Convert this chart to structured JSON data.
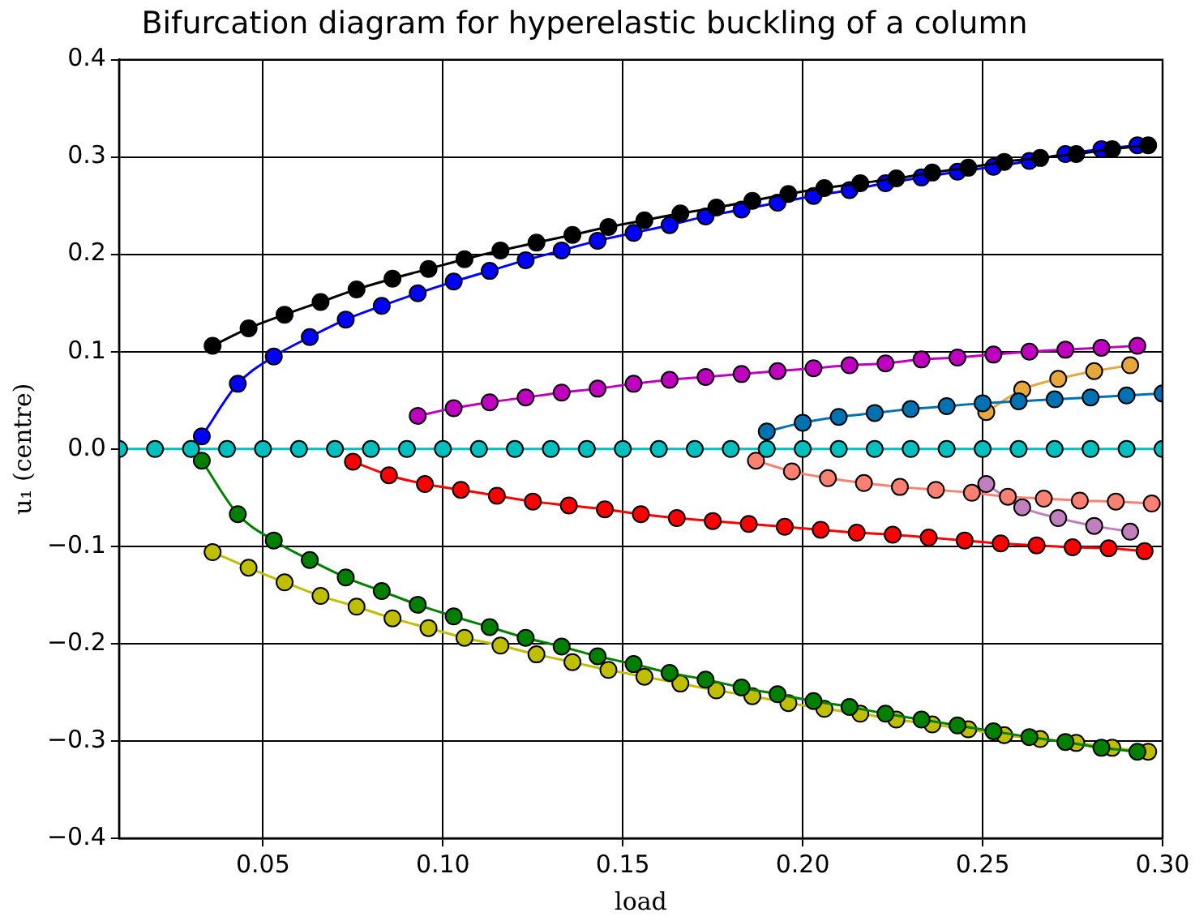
{
  "chart_data": {
    "type": "line",
    "title": "Bifurcation diagram for hyperelastic buckling of a column",
    "xlabel": "load",
    "ylabel": "u₁ (centre)",
    "xlim": [
      0.01,
      0.3
    ],
    "ylim": [
      -0.4,
      0.4
    ],
    "xticks": [
      0.05,
      {
        "value": 0.1,
        "label": "0.10"
      },
      0.15,
      {
        "value": 0.2,
        "label": "0.20"
      },
      0.25,
      {
        "value": 0.3,
        "label": "0.30"
      }
    ],
    "yticks": [
      {
        "value": -0.4,
        "label": "−0.4"
      },
      {
        "value": -0.3,
        "label": "−0.3"
      },
      {
        "value": -0.2,
        "label": "−0.2"
      },
      {
        "value": -0.1,
        "label": "−0.1"
      },
      {
        "value": 0,
        "label": "0.0"
      },
      0.1,
      0.2,
      0.3,
      0.4
    ],
    "grid": true,
    "legend": false,
    "marker": "circle",
    "line_style": "solid",
    "series": [
      {
        "color": "#00bfbf",
        "x": [
          0.01,
          0.02,
          0.03,
          0.04,
          0.05,
          0.06,
          0.07,
          0.08,
          0.09,
          0.1,
          0.11,
          0.12,
          0.13,
          0.14,
          0.15,
          0.16,
          0.17,
          0.18,
          0.19,
          0.2,
          0.21,
          0.22,
          0.23,
          0.24,
          0.25,
          0.26,
          0.27,
          0.28,
          0.29,
          0.3
        ],
        "values": [
          0,
          0,
          0,
          0,
          0,
          0,
          0,
          0,
          0,
          0,
          0,
          0,
          0,
          0,
          0,
          0,
          0,
          0,
          0,
          0,
          0,
          0,
          0,
          0,
          0,
          0,
          0,
          0,
          0,
          0
        ]
      },
      {
        "color": "#000000",
        "x": [
          0.036,
          0.046,
          0.056,
          0.066,
          0.076,
          0.086,
          0.096,
          0.106,
          0.116,
          0.126,
          0.136,
          0.146,
          0.156,
          0.166,
          0.176,
          0.186,
          0.196,
          0.206,
          0.216,
          0.226,
          0.236,
          0.246,
          0.256,
          0.266,
          0.276,
          0.286,
          0.296
        ],
        "values": [
          0.106,
          0.124,
          0.138,
          0.151,
          0.164,
          0.175,
          0.185,
          0.195,
          0.204,
          0.212,
          0.22,
          0.228,
          0.235,
          0.242,
          0.248,
          0.255,
          0.262,
          0.268,
          0.273,
          0.278,
          0.284,
          0.289,
          0.295,
          0.299,
          0.303,
          0.308,
          0.312
        ]
      },
      {
        "color": "#0000ff",
        "x": [
          0.033,
          0.043,
          0.053,
          0.063,
          0.073,
          0.083,
          0.093,
          0.103,
          0.113,
          0.123,
          0.133,
          0.143,
          0.153,
          0.163,
          0.173,
          0.183,
          0.193,
          0.203,
          0.213,
          0.223,
          0.233,
          0.243,
          0.253,
          0.263,
          0.273,
          0.283,
          0.293
        ],
        "values": [
          0.013,
          0.067,
          0.095,
          0.115,
          0.133,
          0.147,
          0.16,
          0.172,
          0.183,
          0.194,
          0.204,
          0.214,
          0.222,
          0.23,
          0.239,
          0.246,
          0.253,
          0.26,
          0.266,
          0.273,
          0.279,
          0.285,
          0.29,
          0.296,
          0.303,
          0.308,
          0.312
        ]
      },
      {
        "color": "#008000",
        "x": [
          0.033,
          0.043,
          0.053,
          0.063,
          0.073,
          0.083,
          0.093,
          0.103,
          0.113,
          0.123,
          0.133,
          0.143,
          0.153,
          0.163,
          0.173,
          0.183,
          0.193,
          0.203,
          0.213,
          0.223,
          0.233,
          0.243,
          0.253,
          0.263,
          0.273,
          0.283,
          0.293
        ],
        "values": [
          -0.012,
          -0.067,
          -0.094,
          -0.114,
          -0.132,
          -0.146,
          -0.16,
          -0.172,
          -0.183,
          -0.194,
          -0.203,
          -0.213,
          -0.221,
          -0.23,
          -0.237,
          -0.245,
          -0.252,
          -0.259,
          -0.265,
          -0.272,
          -0.278,
          -0.284,
          -0.29,
          -0.296,
          -0.301,
          -0.307,
          -0.311
        ]
      },
      {
        "color": "#bfbf00",
        "x": [
          0.036,
          0.046,
          0.056,
          0.066,
          0.076,
          0.086,
          0.096,
          0.106,
          0.116,
          0.126,
          0.136,
          0.146,
          0.156,
          0.166,
          0.176,
          0.186,
          0.196,
          0.206,
          0.216,
          0.226,
          0.236,
          0.246,
          0.256,
          0.266,
          0.276,
          0.286,
          0.296
        ],
        "values": [
          -0.106,
          -0.122,
          -0.137,
          -0.151,
          -0.162,
          -0.174,
          -0.184,
          -0.194,
          -0.202,
          -0.211,
          -0.219,
          -0.227,
          -0.234,
          -0.241,
          -0.248,
          -0.254,
          -0.261,
          -0.267,
          -0.272,
          -0.278,
          -0.283,
          -0.288,
          -0.294,
          -0.298,
          -0.302,
          -0.307,
          -0.311
        ]
      },
      {
        "color": "#bf00bf",
        "x": [
          0.093,
          0.103,
          0.113,
          0.123,
          0.133,
          0.143,
          0.153,
          0.163,
          0.173,
          0.183,
          0.193,
          0.203,
          0.213,
          0.223,
          0.233,
          0.243,
          0.253,
          0.263,
          0.273,
          0.283,
          0.293
        ],
        "values": [
          0.034,
          0.042,
          0.048,
          0.053,
          0.058,
          0.062,
          0.067,
          0.071,
          0.074,
          0.077,
          0.08,
          0.083,
          0.086,
          0.088,
          0.092,
          0.094,
          0.097,
          0.1,
          0.102,
          0.104,
          0.106
        ]
      },
      {
        "color": "#ff0000",
        "x": [
          0.075,
          0.085,
          0.095,
          0.105,
          0.115,
          0.125,
          0.135,
          0.145,
          0.155,
          0.165,
          0.175,
          0.185,
          0.195,
          0.205,
          0.215,
          0.225,
          0.235,
          0.245,
          0.255,
          0.265,
          0.275,
          0.285,
          0.295
        ],
        "values": [
          -0.013,
          -0.027,
          -0.036,
          -0.042,
          -0.048,
          -0.054,
          -0.058,
          -0.062,
          -0.067,
          -0.071,
          -0.074,
          -0.077,
          -0.08,
          -0.083,
          -0.086,
          -0.088,
          -0.091,
          -0.094,
          -0.097,
          -0.099,
          -0.101,
          -0.102,
          -0.105
        ]
      },
      {
        "color": "#0072b2",
        "x": [
          0.19,
          0.2,
          0.21,
          0.22,
          0.23,
          0.24,
          0.25,
          0.26,
          0.27,
          0.28,
          0.29,
          0.3
        ],
        "values": [
          0.018,
          0.027,
          0.033,
          0.037,
          0.041,
          0.044,
          0.047,
          0.049,
          0.051,
          0.053,
          0.055,
          0.057
        ]
      },
      {
        "color": "#fa8072",
        "x": [
          0.187,
          0.197,
          0.207,
          0.217,
          0.227,
          0.237,
          0.247,
          0.257,
          0.267,
          0.277,
          0.287,
          0.297
        ],
        "values": [
          -0.012,
          -0.023,
          -0.03,
          -0.035,
          -0.039,
          -0.042,
          -0.045,
          -0.049,
          -0.051,
          -0.053,
          -0.054,
          -0.056
        ]
      },
      {
        "color": "#e6a83c",
        "x": [
          0.251,
          0.261,
          0.271,
          0.281,
          0.291
        ],
        "values": [
          0.038,
          0.061,
          0.072,
          0.08,
          0.086
        ]
      },
      {
        "color": "#c080c0",
        "x": [
          0.251,
          0.261,
          0.271,
          0.281,
          0.291
        ],
        "values": [
          -0.036,
          -0.06,
          -0.071,
          -0.079,
          -0.085
        ]
      }
    ]
  }
}
